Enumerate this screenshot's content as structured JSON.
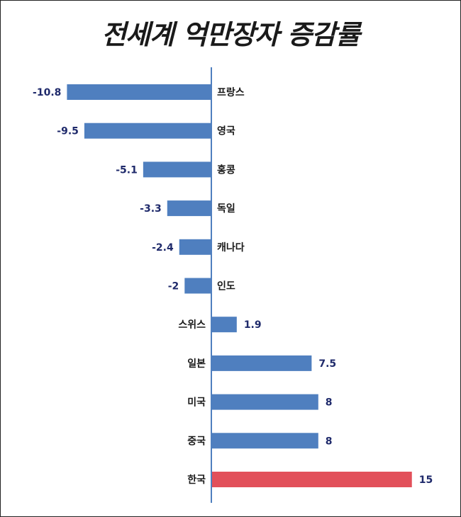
{
  "chart_data": {
    "type": "bar",
    "orientation": "horizontal",
    "title": "전세계 억만장자 증감률",
    "categories": [
      "프랑스",
      "영국",
      "홍콩",
      "독일",
      "캐나다",
      "인도",
      "스위스",
      "일본",
      "미국",
      "중국",
      "한국"
    ],
    "values": [
      -10.8,
      -9.5,
      -5.1,
      -3.3,
      -2.4,
      -2,
      1.9,
      7.5,
      8,
      8,
      15
    ],
    "value_labels": [
      "-10.8",
      "-9.5",
      "-5.1",
      "-3.3",
      "-2.4",
      "-2",
      "1.9",
      "7.5",
      "8",
      "8",
      "15"
    ],
    "xlim": [
      -11,
      15
    ],
    "grid": false,
    "colors": {
      "default": "#4f7fbf",
      "highlight": "#e2505a",
      "axis": "#4f7fbf"
    },
    "highlight_category": "한국"
  }
}
